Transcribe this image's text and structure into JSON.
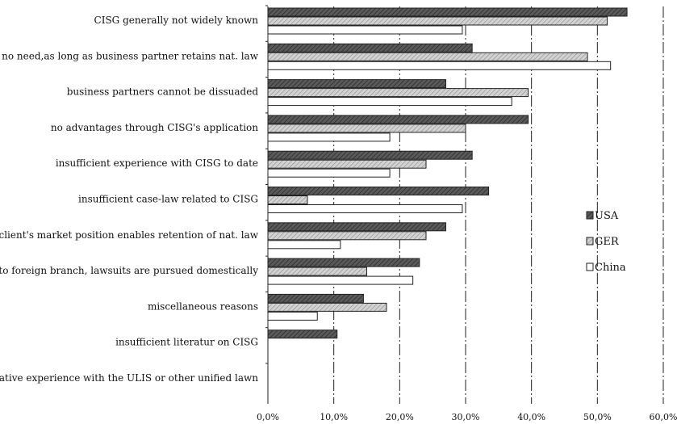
{
  "chart_data": {
    "type": "bar",
    "orientation": "horizontal",
    "title": "",
    "xlabel": "",
    "ylabel": "",
    "xlim": [
      0,
      60
    ],
    "x_ticks": [
      "0,0%",
      "10,0%",
      "20,0%",
      "30,0%",
      "40,0%",
      "50,0%",
      "60,0%"
    ],
    "grid": "vertical dash-dot lines at each tick",
    "legend_position": "right",
    "categories": [
      "CISG generally not widely known",
      "no need,as long as business partner retains nat. law",
      "business partners cannot be dissuaded",
      "no advantages through CISG's application",
      "insufficient experience with CISG to date",
      "insufficient case-law related to CISG",
      "our/client's market position enables retention of nat. law",
      "due to foreign branch, lawsuits are pursued domestically",
      "miscellaneous reasons",
      "insufficient literatur on CISG",
      "negative experience with the ULIS or other unified lawn"
    ],
    "series": [
      {
        "name": "USA",
        "color": "#555555",
        "values": [
          54.5,
          31.0,
          27.0,
          39.5,
          31.0,
          33.5,
          27.0,
          23.0,
          14.5,
          10.5,
          0
        ]
      },
      {
        "name": "GER",
        "color": "#aaaaaa",
        "values": [
          51.5,
          48.5,
          39.5,
          30.0,
          24.0,
          6.0,
          24.0,
          15.0,
          18.0,
          0,
          0
        ]
      },
      {
        "name": "China",
        "color": "#ffffff",
        "values": [
          29.5,
          52.0,
          37.0,
          18.5,
          18.5,
          29.5,
          11.0,
          22.0,
          7.5,
          0,
          0
        ]
      }
    ]
  }
}
